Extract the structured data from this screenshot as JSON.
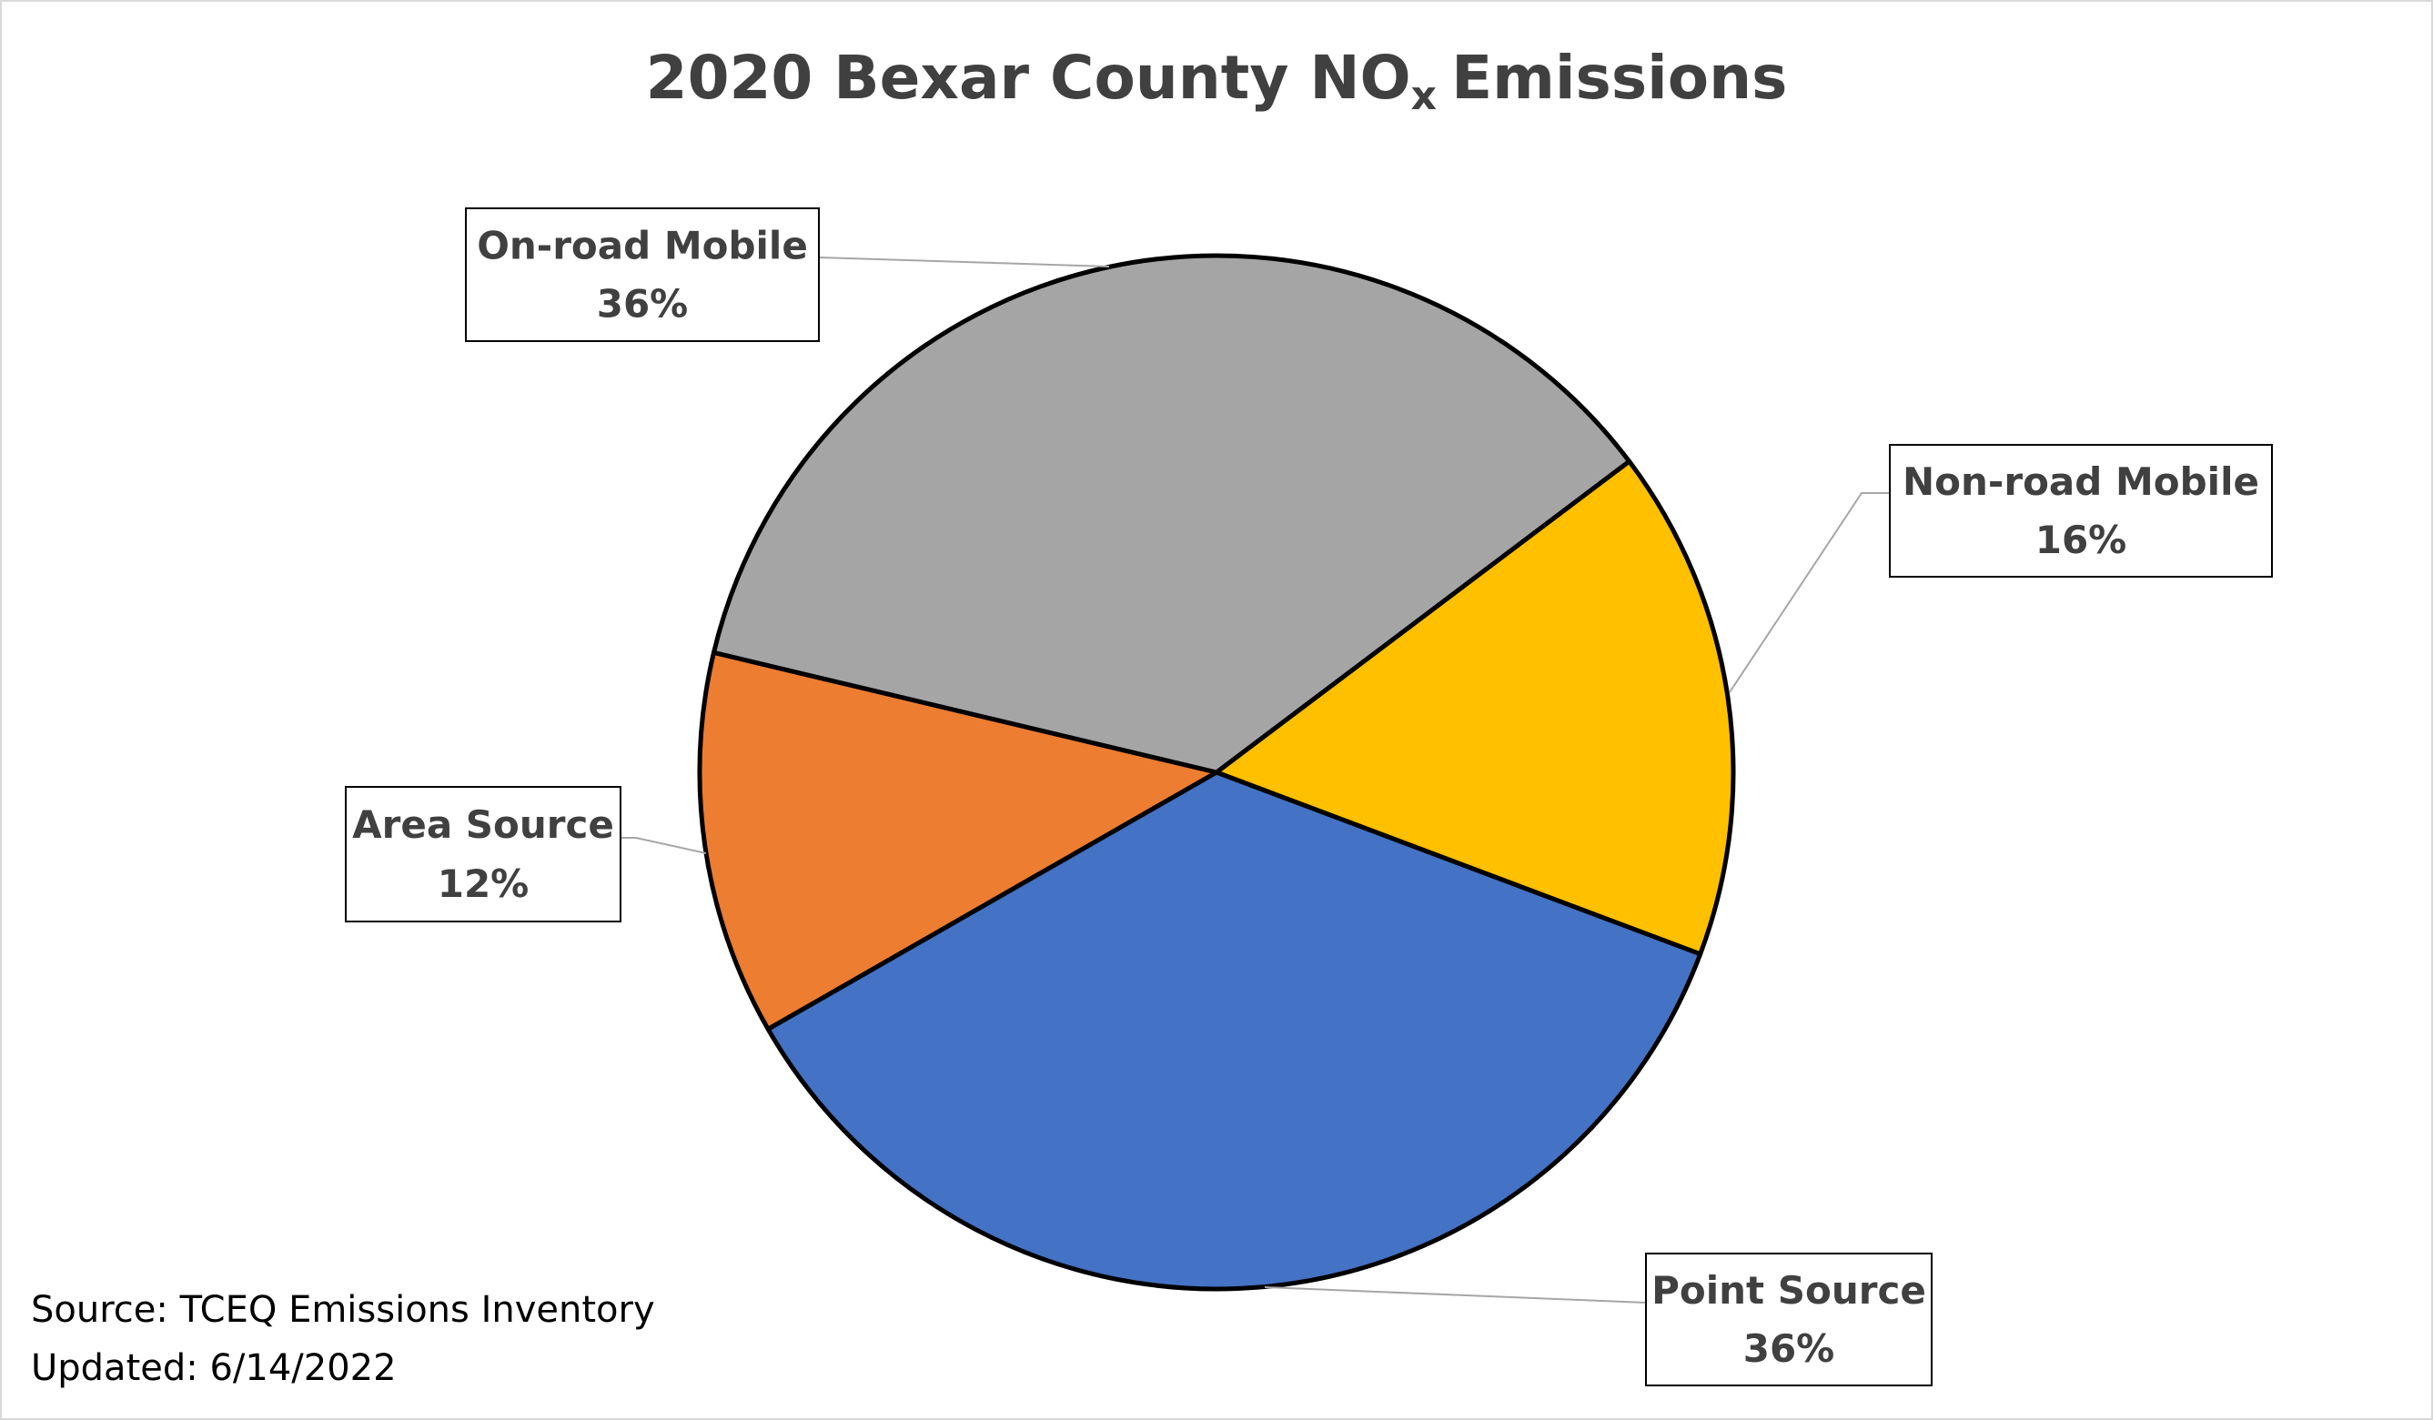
{
  "chart_data": {
    "type": "pie",
    "title": {
      "text": "2020 Bexar County NO",
      "subscript": "x",
      "after": "Emissions"
    },
    "categories": [
      "Non-road Mobile",
      "Point Source",
      "Area Source",
      "On-road Mobile"
    ],
    "values": [
      16,
      36,
      12,
      36
    ],
    "value_labels": [
      "16%",
      "36%",
      "12%",
      "36%"
    ],
    "colors": [
      "#ffc000",
      "#4472c4",
      "#ed7d31",
      "#a5a5a5"
    ],
    "start_angle": 53,
    "notes": [
      "Source: TCEQ Emissions Inventory",
      "Updated: 6/14/2022"
    ]
  }
}
